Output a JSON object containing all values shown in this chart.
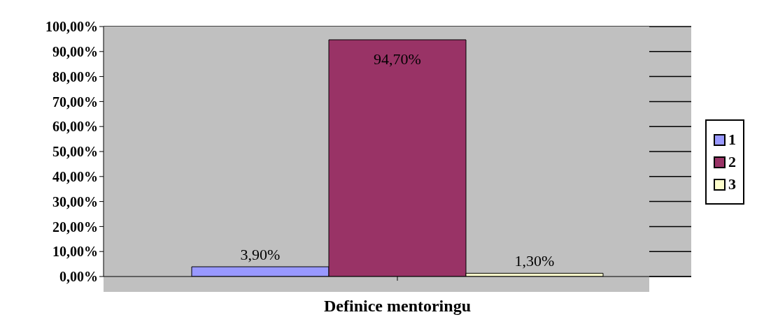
{
  "chart_data": {
    "type": "bar",
    "xlabel": "Definice mentoringu",
    "categories": [
      null
    ],
    "series": [
      {
        "name": "1",
        "color": "#9999ff",
        "values": [
          3.9
        ],
        "value_labels": [
          "3,90%"
        ]
      },
      {
        "name": "2",
        "color": "#993366",
        "values": [
          94.7
        ],
        "value_labels": [
          "94,70%"
        ]
      },
      {
        "name": "3",
        "color": "#ffffcc",
        "values": [
          1.3
        ],
        "value_labels": [
          "1,30%"
        ]
      }
    ],
    "ylim": [
      0,
      100
    ],
    "yticks": [
      {
        "value": 0,
        "label": "0,00%"
      },
      {
        "value": 10,
        "label": "10,00%"
      },
      {
        "value": 20,
        "label": "20,00%"
      },
      {
        "value": 30,
        "label": "30,00%"
      },
      {
        "value": 40,
        "label": "40,00%"
      },
      {
        "value": 50,
        "label": "50,00%"
      },
      {
        "value": 60,
        "label": "60,00%"
      },
      {
        "value": 70,
        "label": "70,00%"
      },
      {
        "value": 80,
        "label": "80,00%"
      },
      {
        "value": 90,
        "label": "90,00%"
      },
      {
        "value": 100,
        "label": "100,00%"
      }
    ],
    "grid": "y",
    "legend": "right"
  }
}
